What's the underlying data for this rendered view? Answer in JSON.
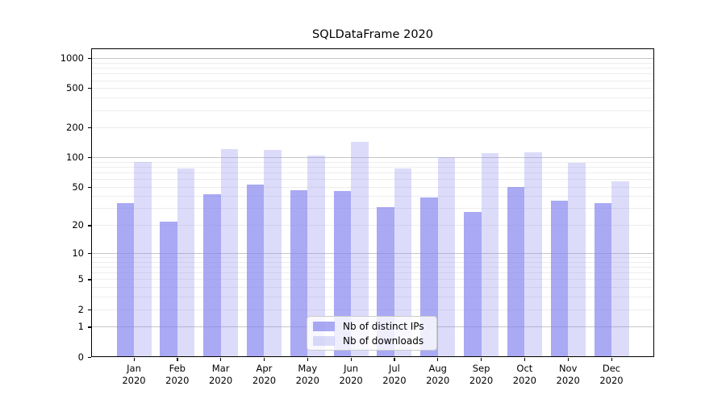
{
  "page": {
    "title": "SQLDataFrame 2020"
  },
  "chart_data": {
    "type": "bar",
    "title": "SQLDataFrame 2020",
    "year_label": "2020",
    "categories": [
      "Jan",
      "Feb",
      "Mar",
      "Apr",
      "May",
      "Jun",
      "Jul",
      "Aug",
      "Sep",
      "Oct",
      "Nov",
      "Dec"
    ],
    "series": [
      {
        "name": "Nb of distinct IPs",
        "values": [
          34,
          22,
          42,
          53,
          47,
          46,
          31,
          39,
          28,
          50,
          36,
          34
        ],
        "fill": "rgba(132,132,239,0.70)"
      },
      {
        "name": "Nb of downloads",
        "values": [
          90,
          78,
          122,
          119,
          105,
          145,
          78,
          101,
          111,
          113,
          89,
          57
        ],
        "fill": "rgba(138,138,238,0.30)"
      }
    ],
    "xlabel": "",
    "ylabel": "",
    "yscale": "symlog-ln(1+v)",
    "ylim": [
      0,
      1268
    ],
    "yticks": [
      0,
      1,
      2,
      5,
      10,
      20,
      50,
      100,
      200,
      500,
      1000
    ],
    "grid": {
      "on": true,
      "major_values": [
        1,
        10,
        100,
        1000
      ],
      "minor_values": [
        2,
        3,
        4,
        5,
        6,
        7,
        8,
        9,
        20,
        30,
        40,
        50,
        60,
        70,
        80,
        90,
        200,
        300,
        400,
        500,
        600,
        700,
        800,
        900
      ],
      "major_color": "#c6c6c6",
      "minor_color": "#ededed"
    },
    "legend_position": "lower center",
    "axis_color": "#000000"
  }
}
